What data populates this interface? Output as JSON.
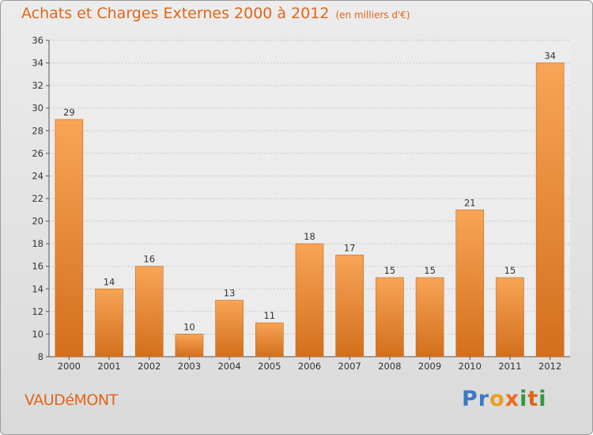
{
  "title": "Achats et Charges Externes 2000 à 2012",
  "title_unit": "(en milliers d'€)",
  "city": "VAUDéMONT",
  "logo": "Proxiti",
  "colors": {
    "bar": "#e8832e",
    "bar_light": "#f7a556",
    "title": "#e0661a",
    "grid": "#c8c8c8"
  },
  "chart_data": {
    "type": "bar",
    "title": "Achats et Charges Externes 2000 à 2012",
    "categories": [
      "2000",
      "2001",
      "2002",
      "2003",
      "2004",
      "2005",
      "2006",
      "2007",
      "2008",
      "2009",
      "2010",
      "2011",
      "2012"
    ],
    "values": [
      29,
      14,
      16,
      10,
      13,
      11,
      18,
      17,
      15,
      15,
      21,
      15,
      34
    ],
    "ylim": [
      8,
      36
    ],
    "yticks": [
      8,
      10,
      12,
      14,
      16,
      18,
      20,
      22,
      24,
      26,
      28,
      30,
      32,
      34,
      36
    ],
    "grid": true,
    "xlabel": "",
    "ylabel": ""
  }
}
